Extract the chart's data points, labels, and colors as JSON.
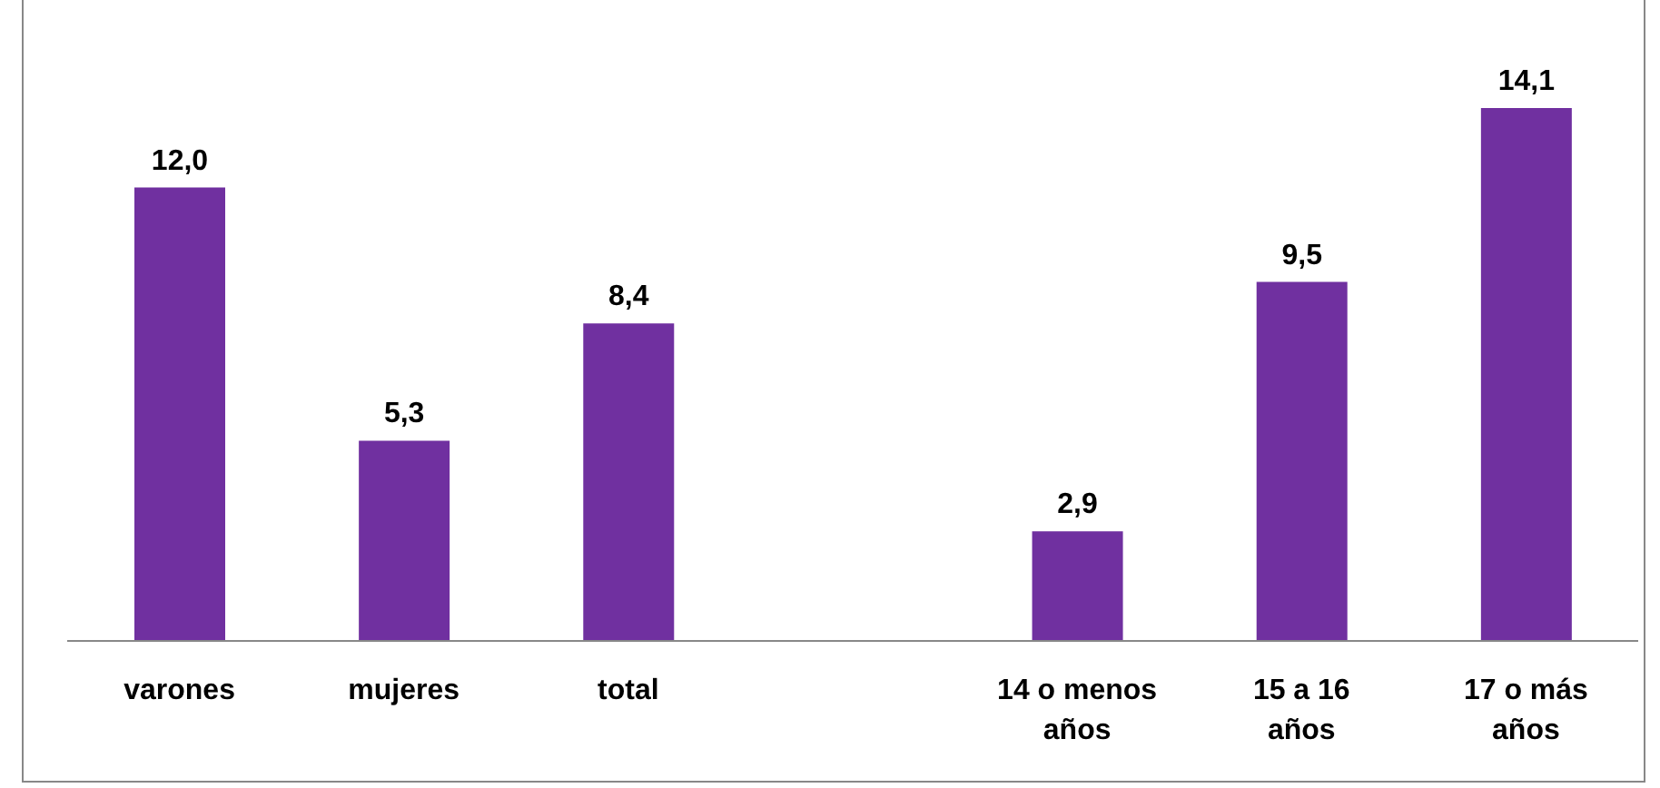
{
  "chart_data": {
    "type": "bar",
    "categories": [
      "varones",
      "mujeres",
      "total",
      null,
      "14 o menos años",
      "15 a 16 años",
      "17 o más años"
    ],
    "values": [
      12.0,
      5.3,
      8.4,
      null,
      2.9,
      9.5,
      14.1
    ],
    "value_labels": [
      "12,0",
      "5,3",
      "8,4",
      null,
      "2,9",
      "9,5",
      "14,1"
    ],
    "color": "#7030a0"
  }
}
